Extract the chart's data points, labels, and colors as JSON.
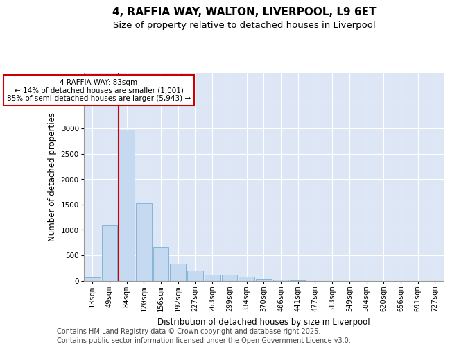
{
  "title_line1": "4, RAFFIA WAY, WALTON, LIVERPOOL, L9 6ET",
  "title_line2": "Size of property relative to detached houses in Liverpool",
  "xlabel": "Distribution of detached houses by size in Liverpool",
  "ylabel": "Number of detached properties",
  "categories": [
    "13sqm",
    "49sqm",
    "84sqm",
    "120sqm",
    "156sqm",
    "192sqm",
    "227sqm",
    "263sqm",
    "299sqm",
    "334sqm",
    "370sqm",
    "406sqm",
    "441sqm",
    "477sqm",
    "513sqm",
    "549sqm",
    "584sqm",
    "620sqm",
    "656sqm",
    "691sqm",
    "727sqm"
  ],
  "values": [
    55,
    1090,
    2970,
    1530,
    660,
    330,
    195,
    115,
    115,
    75,
    35,
    15,
    5,
    0,
    0,
    0,
    0,
    0,
    0,
    0,
    0
  ],
  "bar_color": "#c5d9f1",
  "bar_edge_color": "#7bafd4",
  "vline_color": "#cc0000",
  "vline_x_index": 2,
  "annotation_text": "4 RAFFIA WAY: 83sqm\n← 14% of detached houses are smaller (1,001)\n85% of semi-detached houses are larger (5,943) →",
  "annot_box_color": "#ffffff",
  "annot_box_edge": "#cc0000",
  "ylim": [
    0,
    4100
  ],
  "yticks": [
    0,
    500,
    1000,
    1500,
    2000,
    2500,
    3000,
    3500,
    4000
  ],
  "background_color": "#dce6f5",
  "footer_line1": "Contains HM Land Registry data © Crown copyright and database right 2025.",
  "footer_line2": "Contains public sector information licensed under the Open Government Licence v3.0.",
  "title1_fontsize": 11,
  "title2_fontsize": 9.5,
  "axis_label_fontsize": 8.5,
  "tick_fontsize": 7.5,
  "annot_fontsize": 7.5,
  "footer_fontsize": 7
}
